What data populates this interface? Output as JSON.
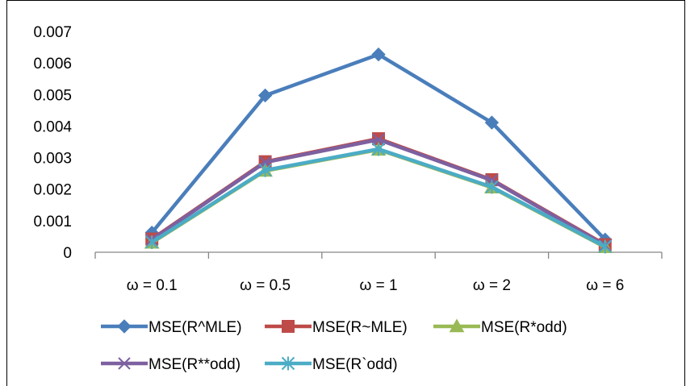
{
  "chart_data": {
    "type": "line",
    "categories": [
      "ω = 0.1",
      "ω = 0.5",
      "ω = 1",
      "ω = 2",
      "ω = 6"
    ],
    "ylim": [
      0,
      0.007
    ],
    "yticks": [
      "0",
      "0.001",
      "0.002",
      "0.003",
      "0.004",
      "0.005",
      "0.006",
      "0.007"
    ],
    "grid": false,
    "legend_position": "bottom",
    "series": [
      {
        "name": "MSE(R^MLE)",
        "values": [
          0.00062,
          0.00497,
          0.00627,
          0.00411,
          0.0004
        ],
        "color": "#4a7ebb",
        "marker": "diamond"
      },
      {
        "name": "MSE(R~MLE)",
        "values": [
          0.00042,
          0.00287,
          0.0036,
          0.0023,
          0.00024
        ],
        "color": "#be4b48",
        "marker": "square"
      },
      {
        "name": "MSE(R*odd)",
        "values": [
          0.0003,
          0.00258,
          0.00325,
          0.00205,
          0.00016
        ],
        "color": "#98b954",
        "marker": "triangle"
      },
      {
        "name": "MSE(R**odd)",
        "values": [
          0.0004,
          0.00285,
          0.00357,
          0.00228,
          0.00022
        ],
        "color": "#7d60a0",
        "marker": "x"
      },
      {
        "name": "MSE(R`odd)",
        "values": [
          0.00032,
          0.0026,
          0.00327,
          0.00207,
          0.00018
        ],
        "color": "#4bacc6",
        "marker": "star"
      }
    ]
  }
}
